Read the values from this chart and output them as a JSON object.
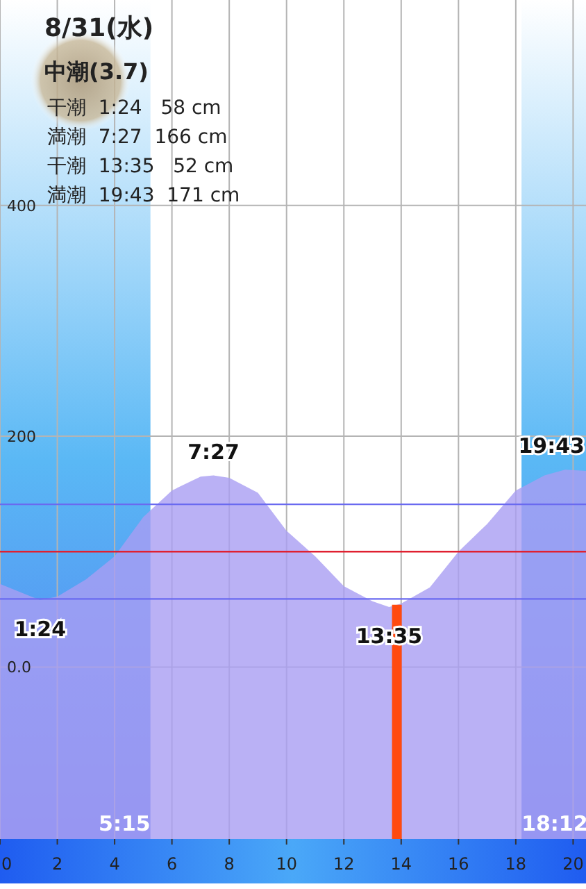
{
  "chart_data": {
    "type": "area",
    "title": "8/31(水)",
    "subtitle": "中潮(3.7)",
    "annotations": [
      "干潮  1:24   58 cm",
      "満潮  7:27  166 cm",
      "干潮  13:35   52 cm",
      "満潮  19:43  171 cm",
      {
        "text": "1:24",
        "x": 1.4,
        "y": 58
      },
      {
        "text": "7:27",
        "x": 7.45,
        "y": 166
      },
      {
        "text": "13:35",
        "x": 13.58,
        "y": 52
      },
      {
        "text": "19:43",
        "x": 19.72,
        "y": 171
      }
    ],
    "x": [
      0,
      1,
      1.4,
      2,
      3,
      4,
      5,
      6,
      7,
      7.45,
      8,
      9,
      10,
      11,
      12,
      13,
      13.58,
      14,
      15,
      16,
      17,
      18,
      19,
      19.72,
      20.45
    ],
    "series": [
      {
        "color": "#a99df2",
        "values": [
          72,
          62,
          58,
          61,
          76,
          96,
          130,
          153,
          165,
          166,
          164,
          151,
          118,
          96,
          70,
          57,
          52,
          55,
          69,
          100,
          124,
          153,
          166,
          171,
          170
        ]
      }
    ],
    "xlim": [
      0,
      20.45
    ],
    "ylim": [
      -149,
      578
    ],
    "xticks": [
      0,
      2,
      4,
      6,
      8,
      10,
      12,
      14,
      16,
      18,
      20
    ],
    "yticks": [
      {
        "value": 0,
        "label": "0.0"
      },
      200,
      400
    ],
    "grid": true,
    "ref_lines": [
      {
        "axis": "y",
        "value": 141,
        "color": "#6a6af0"
      },
      {
        "axis": "y",
        "value": 100,
        "color": "#e02030"
      },
      {
        "axis": "y",
        "value": 59,
        "color": "#6a6af0"
      },
      {
        "axis": "x",
        "value": 13.85,
        "color": "#ff4a10"
      }
    ],
    "bands": [
      {
        "axis": "x",
        "from": 0,
        "to": 5.25,
        "label": "5:15",
        "color": "#4f78f0"
      },
      {
        "axis": "x",
        "from": 18.2,
        "to": 20.45,
        "label": "18:12",
        "color": "#4f78f0"
      }
    ]
  }
}
